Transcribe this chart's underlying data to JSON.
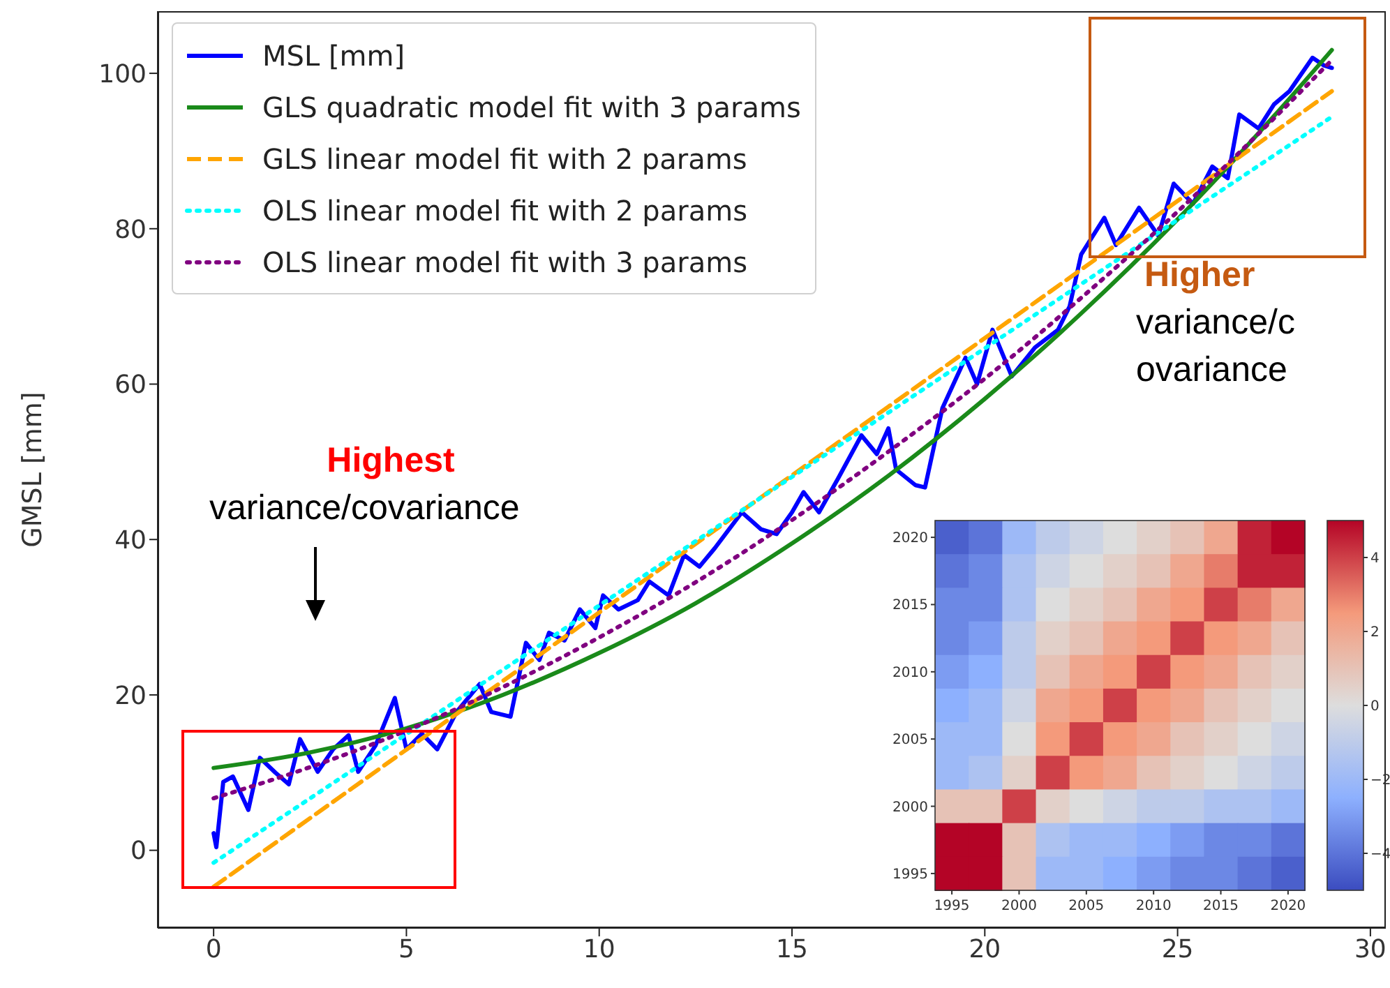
{
  "chart_data": [
    {
      "type": "line",
      "ylabel": "GMSL [mm]",
      "xlim": [
        -1.45,
        30.4
      ],
      "xticks": [
        0,
        5,
        10,
        15,
        20,
        25,
        30
      ],
      "ylim": [
        -10,
        108
      ],
      "yticks": [
        0,
        20,
        40,
        60,
        80,
        100
      ],
      "grid": false,
      "legend": "top left",
      "annotations": [
        "Highest variance/covariance",
        "Higher variance/covariance"
      ],
      "series": [
        {
          "name": "MSL [mm]",
          "type": "line",
          "color": "#0000ff",
          "line_style": "solid",
          "x": [
            0,
            0.07,
            0.25,
            0.5,
            0.9,
            1.2,
            1.6,
            1.95,
            2.24,
            2.7,
            3.1,
            3.5,
            3.75,
            4.2,
            4.7,
            5.0,
            5.4,
            5.8,
            6.3,
            6.9,
            7.2,
            7.7,
            8.1,
            8.45,
            8.7,
            9.1,
            9.5,
            9.9,
            10.1,
            10.5,
            11,
            11.3,
            11.8,
            12.2,
            12.6,
            13,
            13.7,
            14.2,
            14.6,
            15,
            15.3,
            15.7,
            16.2,
            16.8,
            17.2,
            17.5,
            17.7,
            18.2,
            18.45,
            18.7,
            18.9,
            19.5,
            19.8,
            20.2,
            20.7,
            21.3,
            21.9,
            22.2,
            22.5,
            23.1,
            23.4,
            24,
            24.5,
            24.9,
            25.4,
            25.9,
            26.3,
            26.6,
            27.1,
            27.5,
            27.9,
            28.5,
            28.8,
            29
          ],
          "values": [
            2.2,
            0.4,
            8.8,
            9.5,
            5.2,
            11.9,
            10,
            8.5,
            14.3,
            10.1,
            13,
            14.8,
            10.1,
            13.5,
            19.6,
            13,
            15,
            13,
            17.8,
            21.4,
            17.8,
            17.2,
            26.7,
            24.5,
            28,
            27,
            31,
            28.6,
            32.8,
            31,
            32.2,
            34.6,
            32.8,
            38,
            36.5,
            38.9,
            43.5,
            41.3,
            40.7,
            43.5,
            46.1,
            43.5,
            47.9,
            53.4,
            51,
            54.3,
            49,
            47,
            46.7,
            52.4,
            56.9,
            63.4,
            60,
            67,
            61,
            64.7,
            67,
            70,
            76.7,
            81.4,
            77.9,
            82.7,
            79.1,
            85.8,
            83.2,
            88,
            86.5,
            94.7,
            92.9,
            96,
            97.7,
            102,
            101,
            100.7
          ]
        },
        {
          "name": "GLS quadratic model fit with 3 params",
          "type": "line",
          "color": "#1a8a1a",
          "line_style": "solid",
          "x": [
            0,
            2.5,
            5,
            7.5,
            10,
            12.5,
            15,
            17.5,
            20,
            22.5,
            25,
            27.5,
            29
          ],
          "values": [
            10.6,
            12.6,
            15.7,
            20,
            25.4,
            31.8,
            39.5,
            48.2,
            58.1,
            69.1,
            81.2,
            94.5,
            103
          ]
        },
        {
          "name": "GLS linear model fit with 2 params",
          "type": "line",
          "color": "#ffa500",
          "line_style": "dashed",
          "x": [
            0,
            29
          ],
          "values": [
            -4.7,
            97.7
          ]
        },
        {
          "name": "OLS linear model fit with 2 params",
          "type": "line",
          "color": "#00ffff",
          "line_style": "dotted",
          "x": [
            0,
            29
          ],
          "values": [
            -1.6,
            94.4
          ]
        },
        {
          "name": "OLS linear model fit with 3 params",
          "type": "line",
          "color": "#800080",
          "line_style": "dotted",
          "x": [
            0,
            2.5,
            5,
            7.5,
            10,
            12.5,
            15,
            17.5,
            20,
            22.5,
            25,
            27.5,
            29
          ],
          "values": [
            6.7,
            10.7,
            15.4,
            21,
            27.4,
            34.5,
            42.5,
            51.3,
            60.7,
            71.1,
            82.2,
            94.2,
            101.7
          ]
        }
      ]
    },
    {
      "type": "heatmap",
      "categories": [
        "1995",
        null,
        "2000",
        null,
        "2005",
        null,
        "2010",
        null,
        "2015",
        null,
        "2020"
      ],
      "y_categories": [
        "2020",
        null,
        "2015",
        null,
        "2010",
        null,
        "2005",
        null,
        "2000",
        null,
        "1995"
      ],
      "clim": [
        -5,
        5
      ],
      "cticks": [
        {
          "value": -4,
          "label": "−4"
        },
        {
          "value": -2,
          "label": "−2"
        },
        0,
        2,
        4
      ],
      "cells": [
        [
          -4.5,
          -4,
          -2,
          -1,
          -0.5,
          0,
          0.5,
          1,
          2,
          4.5,
          5
        ],
        [
          -4,
          -3.5,
          -1.5,
          -0.5,
          0,
          0.5,
          1,
          2,
          3,
          4.5,
          4.5
        ],
        [
          -3.5,
          -3.5,
          -1.5,
          0,
          0.5,
          1,
          2,
          2.5,
          4,
          3,
          2
        ],
        [
          -3.5,
          -3,
          -1,
          0.5,
          1,
          2,
          2.5,
          4,
          2.5,
          2,
          1
        ],
        [
          -3,
          -2.5,
          -1,
          1,
          2,
          2.5,
          4,
          2.5,
          2,
          1,
          0.5
        ],
        [
          -2.5,
          -2,
          -0.5,
          2,
          2.5,
          4,
          2.5,
          2,
          1,
          0.5,
          0
        ],
        [
          -2,
          -2,
          0,
          2.5,
          4,
          2.5,
          2,
          1,
          0.5,
          0,
          -0.5
        ],
        [
          -2,
          -1.5,
          0.5,
          4,
          2.5,
          2,
          1,
          0.5,
          0,
          -0.5,
          -1
        ],
        [
          1,
          1,
          4,
          0.5,
          0,
          -0.5,
          -1,
          -1,
          -1.5,
          -1.5,
          -2
        ],
        [
          5,
          5,
          1,
          -1.5,
          -2,
          -2,
          -2.5,
          -3,
          -3.5,
          -3.5,
          -4
        ],
        [
          5,
          5,
          1,
          -2,
          -2,
          -2.5,
          -3,
          -3.5,
          -3.5,
          -4,
          -4.5
        ]
      ]
    }
  ]
}
